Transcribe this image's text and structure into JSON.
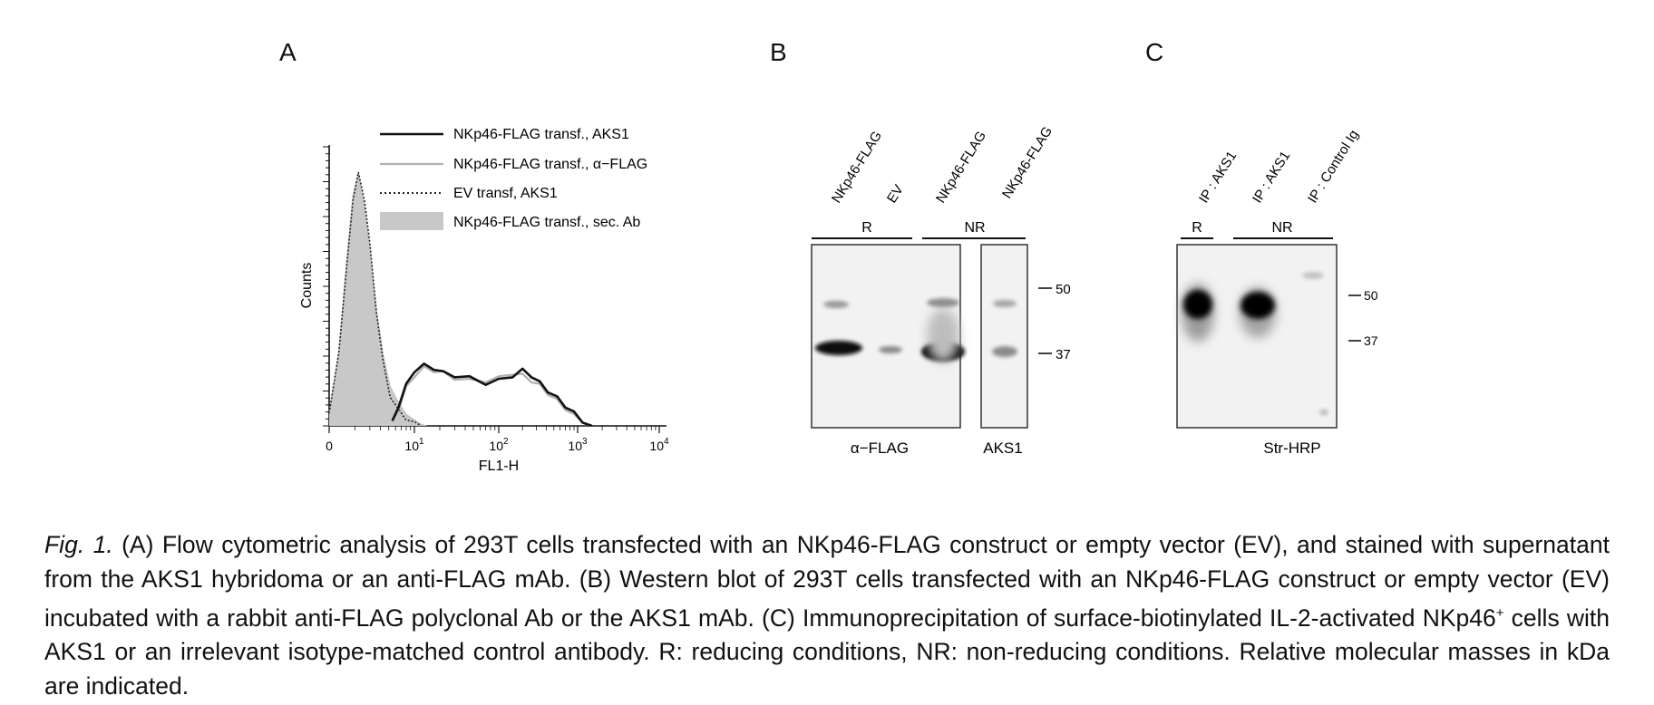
{
  "panels": {
    "a": {
      "letter": "A",
      "chart_data": {
        "type": "line",
        "xlabel": "FL1-H",
        "ylabel": "Counts",
        "x_scale": "log",
        "x_ticks": [
          {
            "base": "0",
            "exp": ""
          },
          {
            "base": "10",
            "exp": "1"
          },
          {
            "base": "10",
            "exp": "2"
          },
          {
            "base": "10",
            "exp": "3"
          },
          {
            "base": "10",
            "exp": "4"
          }
        ],
        "legend_position": "top-right",
        "series": [
          {
            "name": "NKp46-FLAG transf., AKS1",
            "style": "solid",
            "color": "#111111",
            "x": [
              5.5,
              6.5,
              8,
              10,
              13,
              17,
              22,
              30,
              45,
              70,
              100,
              150,
              200,
              260,
              330,
              420,
              550,
              700,
              900,
              1150,
              1500
            ],
            "y": [
              0.02,
              0.08,
              0.16,
              0.22,
              0.24,
              0.23,
              0.21,
              0.2,
              0.19,
              0.17,
              0.18,
              0.2,
              0.22,
              0.2,
              0.17,
              0.14,
              0.11,
              0.08,
              0.05,
              0.02,
              0.0
            ]
          },
          {
            "name": "NKp46-FLAG transf., α−FLAG",
            "style": "solid",
            "color": "#b0b0b0",
            "x": [
              5.5,
              6.5,
              8,
              10,
              13,
              17,
              22,
              30,
              45,
              70,
              100,
              150,
              200,
              260,
              330,
              420,
              550,
              700,
              900,
              1150,
              1400
            ],
            "y": [
              0.02,
              0.07,
              0.15,
              0.2,
              0.23,
              0.22,
              0.21,
              0.19,
              0.18,
              0.18,
              0.19,
              0.21,
              0.2,
              0.18,
              0.16,
              0.13,
              0.1,
              0.07,
              0.04,
              0.02,
              0.0
            ]
          },
          {
            "name": "EV transf, AKS1",
            "style": "dotted",
            "color": "#222222",
            "x": [
              1.0,
              1.3,
              1.6,
              1.9,
              2.2,
              2.6,
              3.0,
              3.6,
              4.3,
              5.2,
              6.5,
              8.0,
              10,
              12
            ],
            "y": [
              0.05,
              0.3,
              0.62,
              0.9,
              1.0,
              0.9,
              0.72,
              0.45,
              0.25,
              0.12,
              0.06,
              0.03,
              0.01,
              0.0
            ]
          },
          {
            "name": "NKp46-FLAG transf., sec. Ab",
            "style": "filled",
            "color": "#c8c8c8",
            "x": [
              1.0,
              1.3,
              1.6,
              1.9,
              2.2,
              2.6,
              3.0,
              3.6,
              4.3,
              5.2,
              6.5,
              8.0,
              10,
              12,
              14
            ],
            "y": [
              0.05,
              0.3,
              0.65,
              0.92,
              1.0,
              0.88,
              0.7,
              0.46,
              0.28,
              0.16,
              0.09,
              0.05,
              0.02,
              0.01,
              0.0
            ]
          }
        ]
      }
    },
    "b": {
      "letter": "B",
      "lane_labels": [
        "NKp46-FLAG",
        "EV",
        "NKp46-FLAG",
        "NKp46-FLAG"
      ],
      "groups": [
        "R",
        "NR"
      ],
      "markers": [
        "50",
        "37"
      ],
      "blot_labels": [
        "α−FLAG",
        "AKS1"
      ]
    },
    "c": {
      "letter": "C",
      "lane_labels": [
        "IP : AKS1",
        "IP : AKS1",
        "IP : Control Ig"
      ],
      "groups": [
        "R",
        "NR"
      ],
      "markers": [
        "50",
        "37"
      ],
      "blot_label": "Str-HRP"
    }
  },
  "caption": {
    "fig_label": "Fig. 1.",
    "text_1": " (A) Flow cytometric analysis of 293T cells transfected with an NKp46-FLAG construct or empty vector (EV), and stained with supernatant from the AKS1 hybridoma or an anti-FLAG mAb. (B) Western blot of 293T cells transfected with an NKp46-FLAG construct or empty vector (EV) incubated with a rabbit anti-FLAG polyclonal Ab or the AKS1 mAb. (C) Immunoprecipitation of surface-biotinylated IL-2-activated NKp46",
    "superscript": "+",
    "text_2": " cells with AKS1 or an irrelevant isotype-matched control antibody. R: reducing conditions, NR: non-reducing conditions. Relative molecular masses in kDa are indicated."
  }
}
